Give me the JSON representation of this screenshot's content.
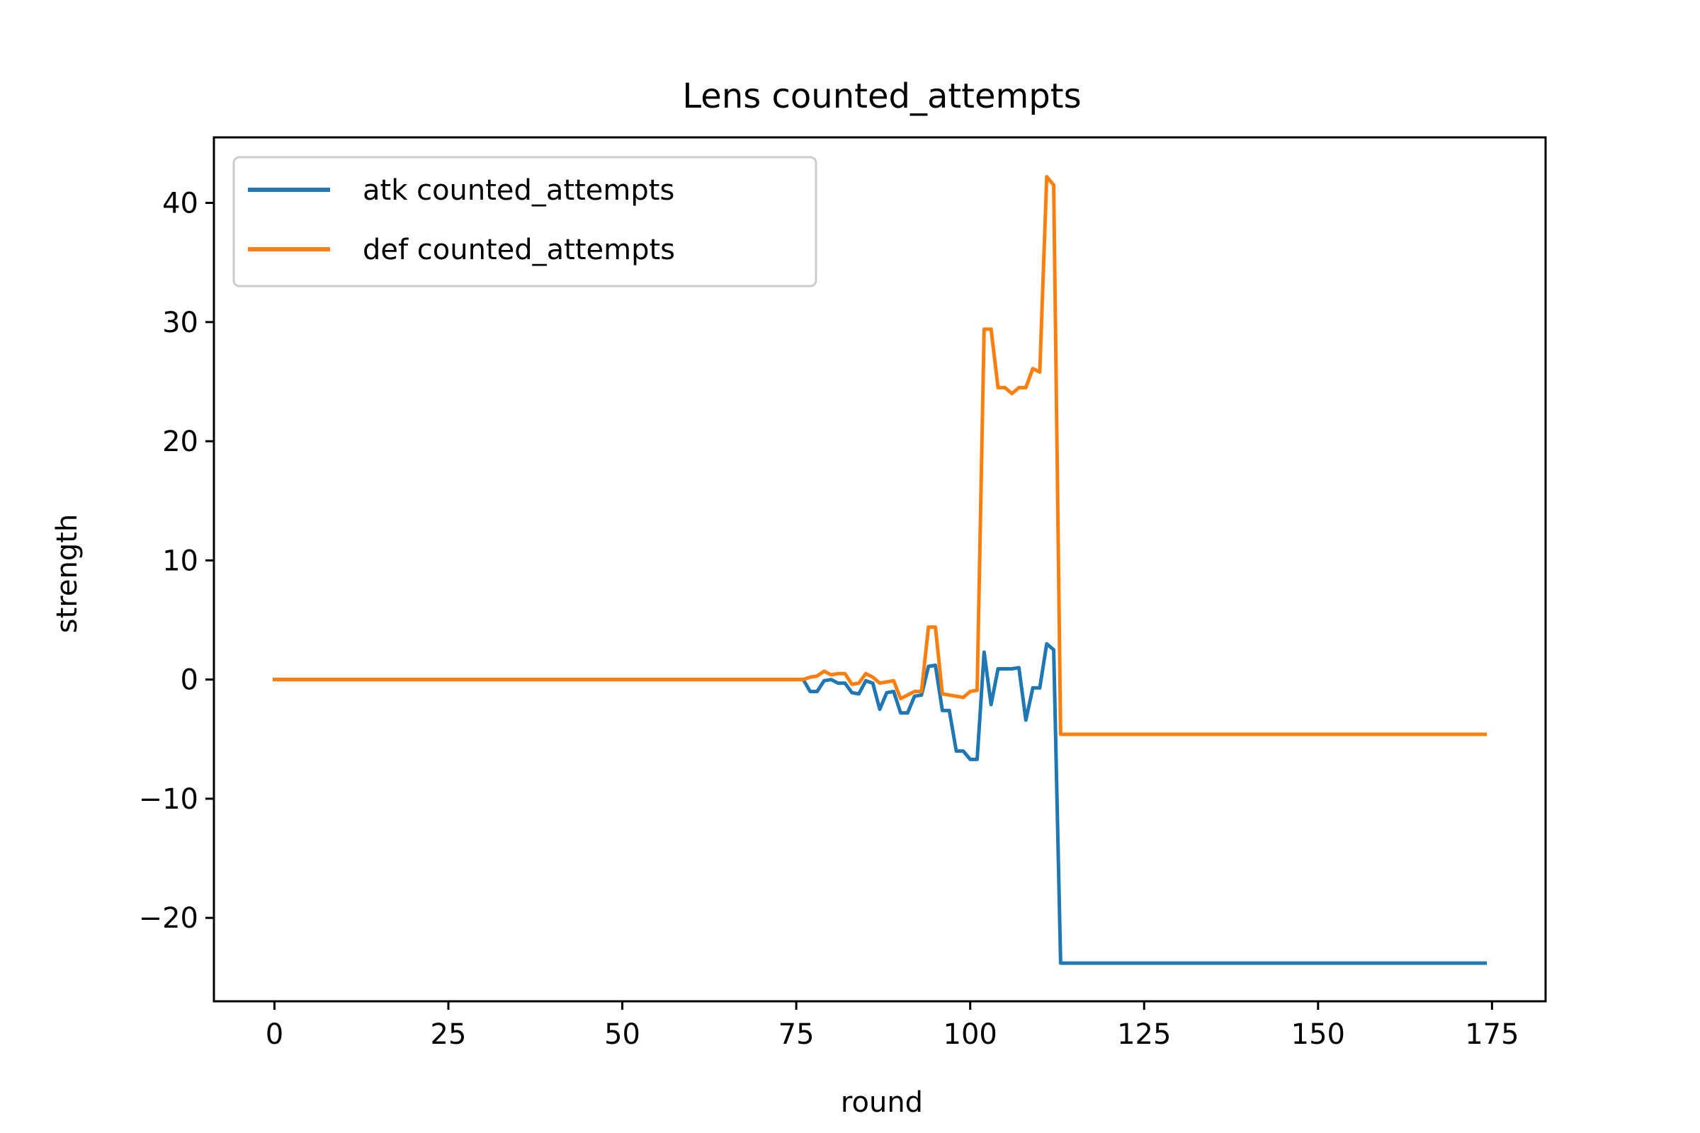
{
  "chart_data": {
    "type": "line",
    "title": "Lens counted_attempts",
    "xlabel": "round",
    "ylabel": "strength",
    "xlim": [
      -8.7,
      182.7
    ],
    "ylim": [
      -27,
      45.5
    ],
    "xticks": [
      0,
      25,
      50,
      75,
      100,
      125,
      150,
      175
    ],
    "yticks": [
      -20,
      -10,
      0,
      10,
      20,
      30,
      40
    ],
    "ytick_labels": [
      "−20",
      "−10",
      "0",
      "10",
      "20",
      "30",
      "40"
    ],
    "grid": false,
    "legend_position": "upper-left",
    "series": [
      {
        "name": "atk counted_attempts",
        "color": "#1f77b4",
        "x": [
          0,
          76,
          77,
          78,
          79,
          80,
          81,
          82,
          83,
          84,
          85,
          86,
          87,
          88,
          89,
          90,
          91,
          92,
          93,
          94,
          95,
          96,
          97,
          98,
          99,
          100,
          101,
          102,
          103,
          104,
          105,
          106,
          107,
          108,
          109,
          110,
          111,
          112,
          113,
          174
        ],
        "y": [
          0,
          0,
          -1.0,
          -1.0,
          -0.1,
          0,
          -0.3,
          -0.3,
          -1.1,
          -1.2,
          -0.1,
          -0.3,
          -2.5,
          -1.1,
          -1.0,
          -2.8,
          -2.8,
          -1.4,
          -1.3,
          1.1,
          1.2,
          -2.6,
          -2.6,
          -6.0,
          -6.0,
          -6.7,
          -6.7,
          2.3,
          -2.1,
          0.9,
          0.9,
          0.9,
          1.0,
          -3.4,
          -0.7,
          -0.7,
          3.0,
          2.5,
          -23.8,
          -23.8
        ]
      },
      {
        "name": "def counted_attempts",
        "color": "#ff7f0e",
        "x": [
          0,
          76,
          77,
          78,
          79,
          80,
          81,
          82,
          83,
          84,
          85,
          86,
          87,
          88,
          89,
          90,
          91,
          92,
          93,
          94,
          95,
          96,
          97,
          98,
          99,
          100,
          101,
          102,
          103,
          104,
          105,
          106,
          107,
          108,
          109,
          110,
          111,
          112,
          113,
          174
        ],
        "y": [
          0,
          0,
          0.2,
          0.3,
          0.7,
          0.4,
          0.5,
          0.5,
          -0.4,
          -0.3,
          0.5,
          0.2,
          -0.3,
          -0.2,
          -0.1,
          -1.6,
          -1.3,
          -1.0,
          -1.0,
          4.4,
          4.4,
          -1.2,
          -1.3,
          -1.4,
          -1.5,
          -1.0,
          -0.9,
          29.4,
          29.4,
          24.5,
          24.5,
          24.0,
          24.5,
          24.5,
          26.1,
          25.8,
          42.2,
          41.5,
          -4.6,
          -4.6
        ]
      }
    ]
  }
}
